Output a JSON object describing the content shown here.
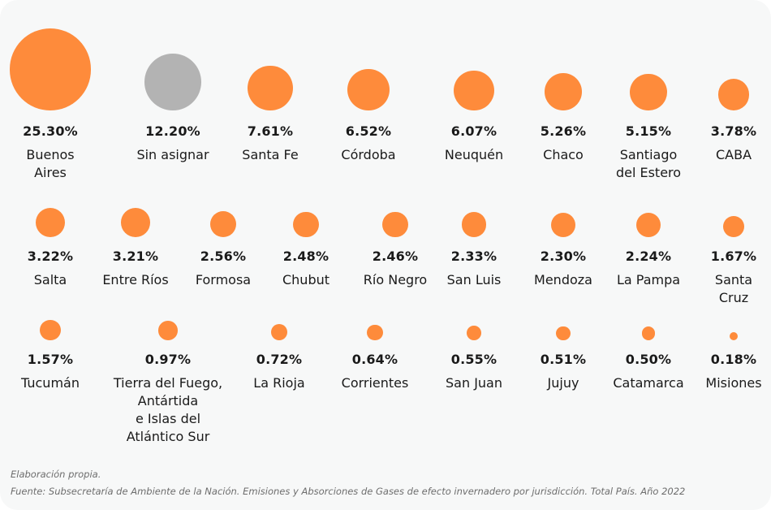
{
  "chart_data": {
    "type": "bubble",
    "unit": "%",
    "colors": {
      "default": "#fe8b3b",
      "unassigned": "#b3b3b3",
      "background": "#f7f8f8"
    },
    "items": [
      {
        "name": "Buenos\nAires",
        "value": 25.3,
        "label": "25.30%"
      },
      {
        "name": "Sin asignar",
        "value": 12.2,
        "label": "12.20%",
        "gray": true
      },
      {
        "name": "Santa Fe",
        "value": 7.61,
        "label": "7.61%"
      },
      {
        "name": "Córdoba",
        "value": 6.52,
        "label": "6.52%"
      },
      {
        "name": "Neuquén",
        "value": 6.07,
        "label": "6.07%"
      },
      {
        "name": "Chaco",
        "value": 5.26,
        "label": "5.26%"
      },
      {
        "name": "Santiago\ndel Estero",
        "value": 5.15,
        "label": "5.15%"
      },
      {
        "name": "CABA",
        "value": 3.78,
        "label": "3.78%"
      },
      {
        "name": "Salta",
        "value": 3.22,
        "label": "3.22%"
      },
      {
        "name": "Entre Ríos",
        "value": 3.21,
        "label": "3.21%"
      },
      {
        "name": "Formosa",
        "value": 2.56,
        "label": "2.56%"
      },
      {
        "name": "Chubut",
        "value": 2.48,
        "label": "2.48%"
      },
      {
        "name": "Río Negro",
        "value": 2.46,
        "label": "2.46%"
      },
      {
        "name": "San Luis",
        "value": 2.33,
        "label": "2.33%"
      },
      {
        "name": "Mendoza",
        "value": 2.3,
        "label": "2.30%"
      },
      {
        "name": "La Pampa",
        "value": 2.24,
        "label": "2.24%"
      },
      {
        "name": "Santa\nCruz",
        "value": 1.67,
        "label": "1.67%"
      },
      {
        "name": "Tucumán",
        "value": 1.57,
        "label": "1.57%"
      },
      {
        "name": "Tierra del Fuego,\nAntártida\ne Islas del\nAtlántico Sur",
        "value": 0.97,
        "label": "0.97%"
      },
      {
        "name": "La Rioja",
        "value": 0.72,
        "label": "0.72%"
      },
      {
        "name": "Corrientes",
        "value": 0.64,
        "label": "0.64%"
      },
      {
        "name": "San Juan",
        "value": 0.55,
        "label": "0.55%"
      },
      {
        "name": "Jujuy",
        "value": 0.51,
        "label": "0.51%"
      },
      {
        "name": "Catamarca",
        "value": 0.5,
        "label": "0.50%"
      },
      {
        "name": "Misiones",
        "value": 0.18,
        "label": "0.18%"
      }
    ]
  },
  "footer": {
    "note": "Elaboración propia.",
    "source": "Fuente: Subsecretaría de Ambiente de la Nación. Emisiones y Absorciones de Gases de efecto invernadero por jurisdicción. Total País. Año 2022"
  }
}
